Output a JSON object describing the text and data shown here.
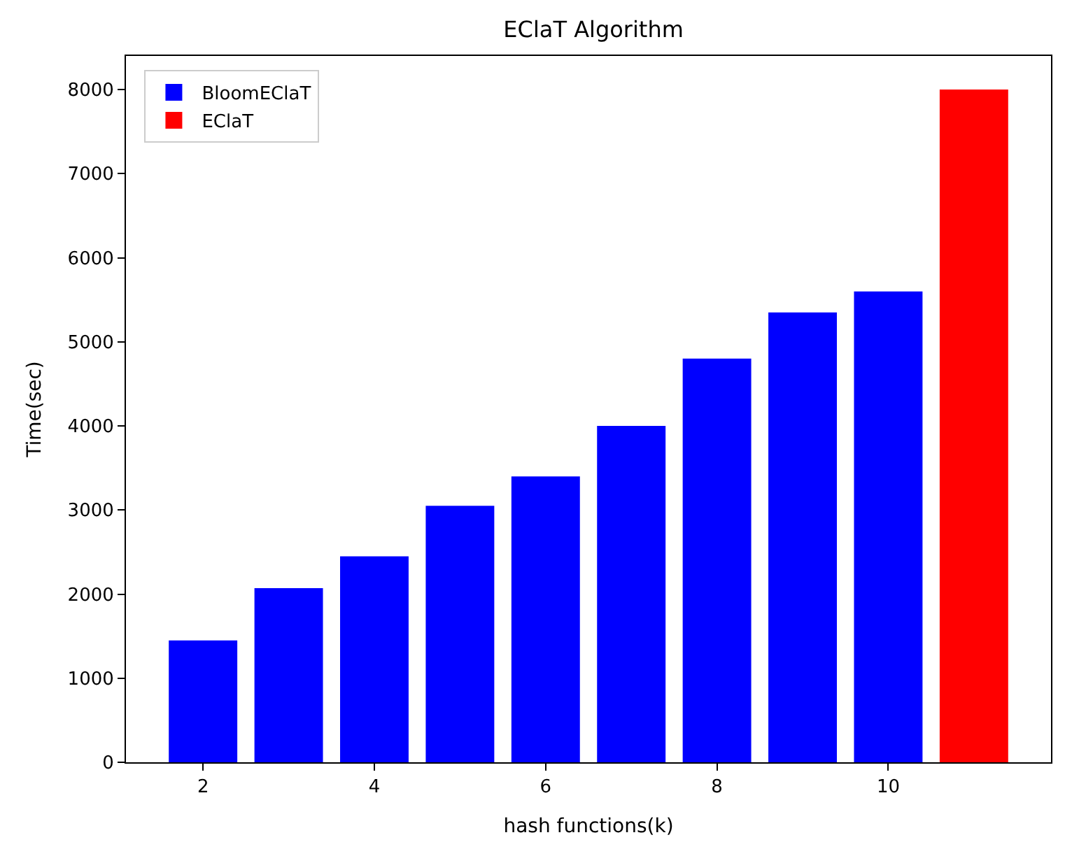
{
  "chart_data": {
    "type": "bar",
    "title": "EClaT Algorithm",
    "xlabel": "hash functions(k)",
    "ylabel": "Time(sec)",
    "series": [
      {
        "name": "BloomEClaT",
        "color": "#0000ff",
        "x": [
          2,
          3,
          4,
          5,
          6,
          7,
          8,
          9,
          10
        ],
        "values": [
          1450,
          2070,
          2450,
          3050,
          3400,
          4000,
          4800,
          5350,
          5600
        ]
      },
      {
        "name": "EClaT",
        "color": "#ff0000",
        "x": [
          11
        ],
        "values": [
          8000
        ]
      }
    ],
    "xlim": [
      1.1,
      11.9
    ],
    "xticks": [
      2,
      4,
      6,
      8,
      10
    ],
    "ylim": [
      0,
      8400
    ],
    "yticks": [
      0,
      1000,
      2000,
      3000,
      4000,
      5000,
      6000,
      7000,
      8000
    ],
    "legend": "top left"
  }
}
